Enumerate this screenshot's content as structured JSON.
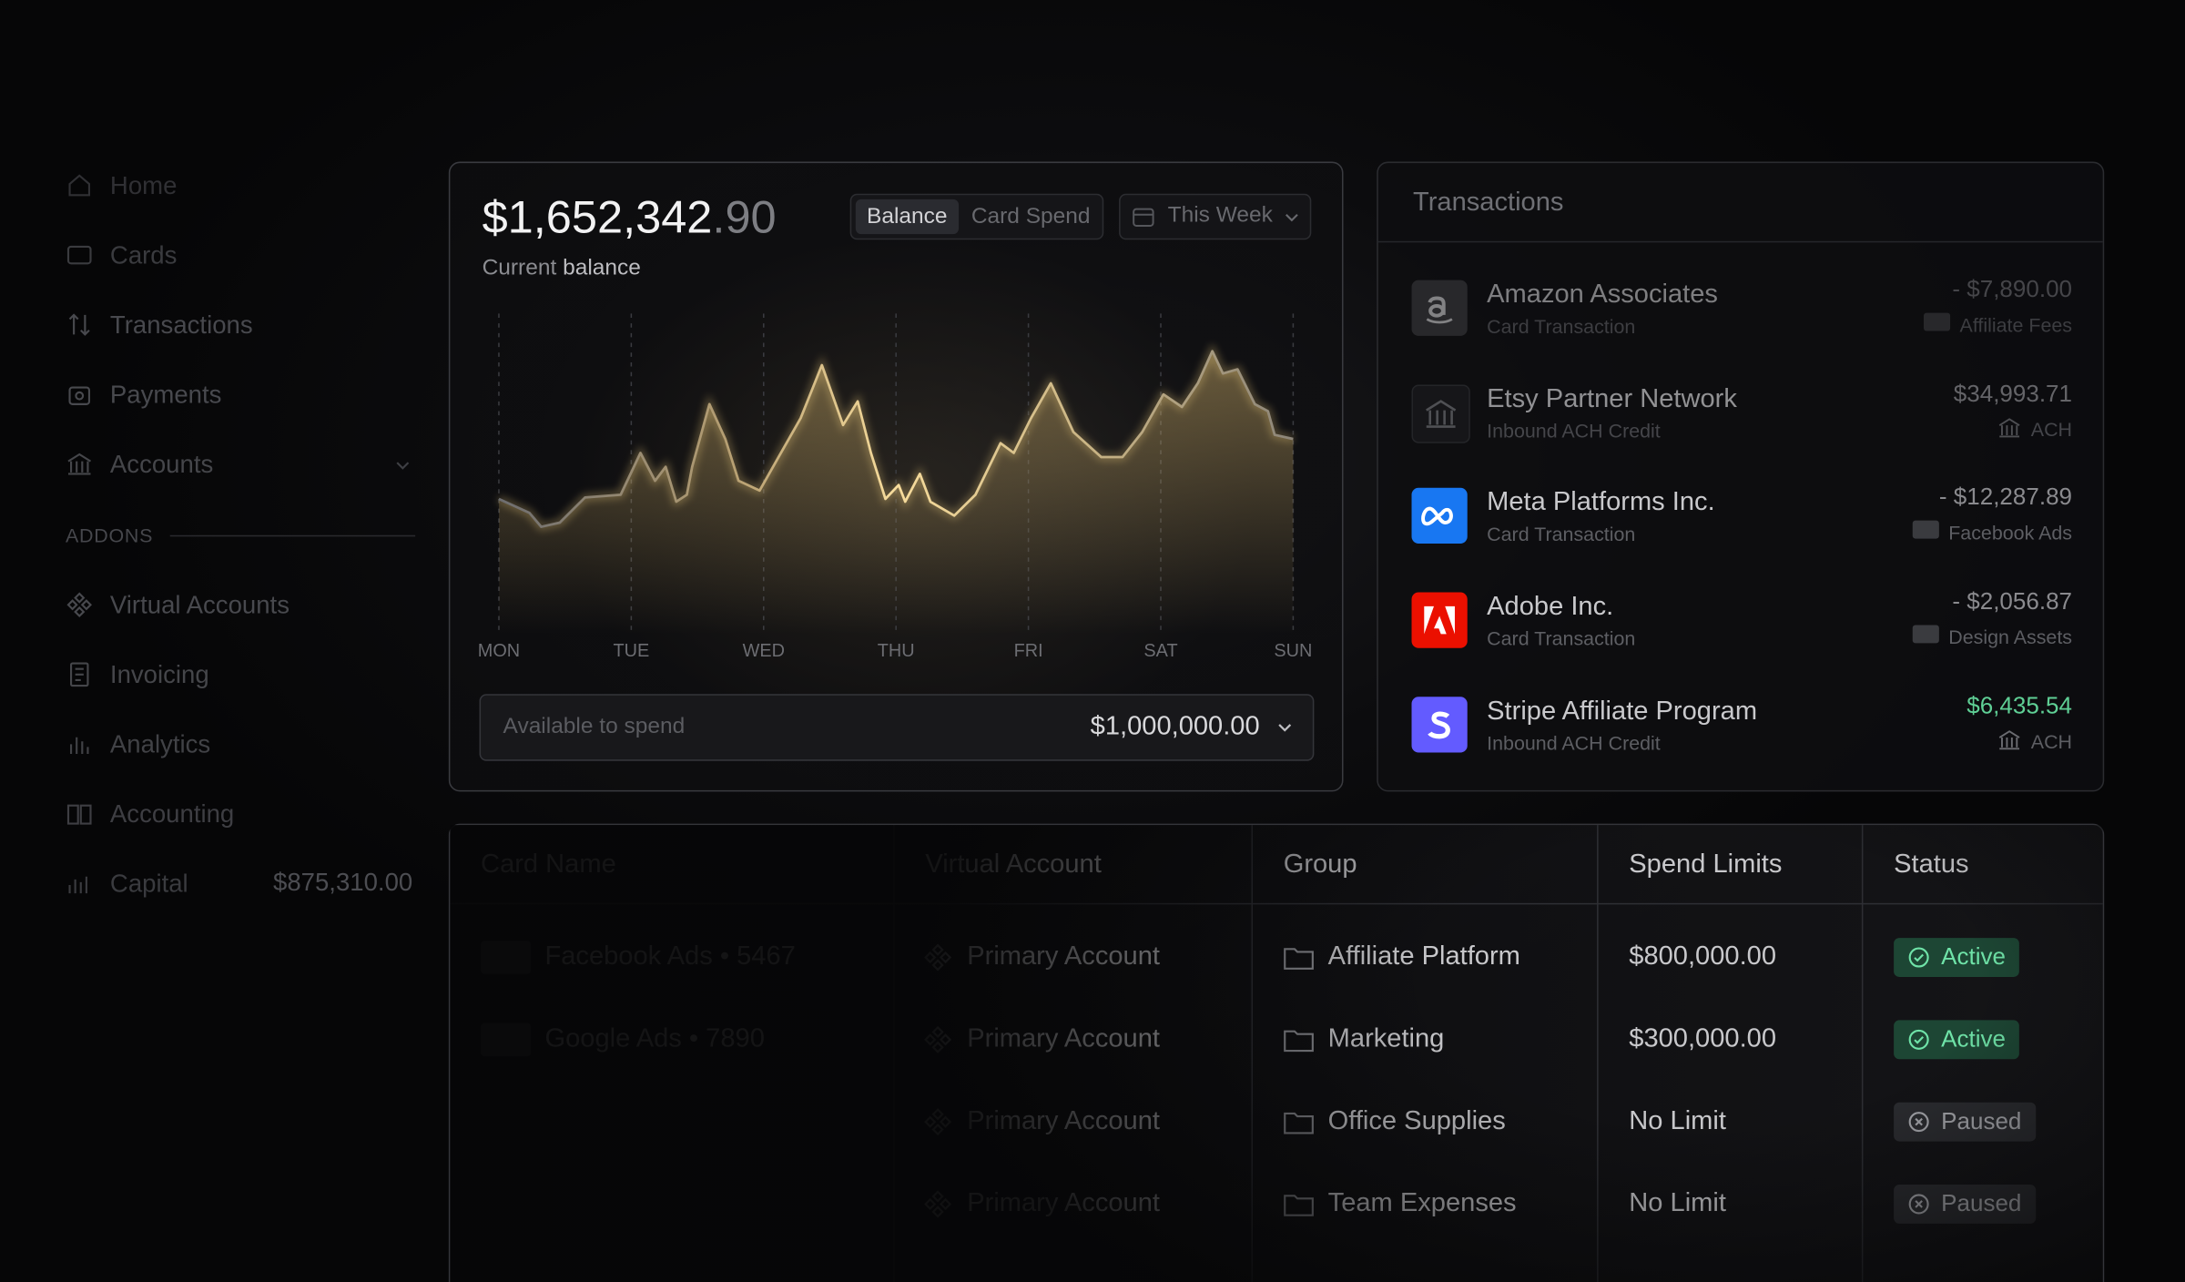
{
  "sidebar": {
    "items": [
      "Home",
      "Cards",
      "Transactions",
      "Payments",
      "Accounts"
    ],
    "addons_label": "ADDONS",
    "addons": [
      "Virtual Accounts",
      "Invoicing",
      "Analytics",
      "Accounting",
      "Capital"
    ],
    "capital_amount": "$875,310.00"
  },
  "balance": {
    "amount_main": "$1,652,342",
    "amount_cents": ".90",
    "caption_a": "Current",
    "caption_b": "balance",
    "tabs": [
      "Balance",
      "Card Spend"
    ],
    "range": "This Week",
    "available_label": "Available to spend",
    "available_amount": "$1,000,000.00"
  },
  "balance_chart": {
    "type": "line",
    "days": [
      "MON",
      "TUE",
      "WED",
      "THU",
      "FRI",
      "SAT",
      "SUN"
    ],
    "x": [
      0,
      0.23,
      0.32,
      0.46,
      0.65,
      0.92,
      1.07,
      1.18,
      1.26,
      1.34,
      1.42,
      1.46,
      1.59,
      1.71,
      1.81,
      1.97,
      2.13,
      2.28,
      2.44,
      2.6,
      2.71,
      2.81,
      2.92,
      3.02,
      3.07,
      3.18,
      3.26,
      3.44,
      3.6,
      3.79,
      3.89,
      4.02,
      4.17,
      4.34,
      4.55,
      4.71,
      4.86,
      5.02,
      5.16,
      5.28,
      5.39,
      5.47,
      5.58,
      5.71,
      5.81,
      5.86,
      6
    ],
    "values": [
      97,
      87,
      77,
      80,
      98,
      100,
      130,
      110,
      120,
      95,
      100,
      120,
      165,
      140,
      110,
      103,
      130,
      155,
      193,
      150,
      167,
      130,
      97,
      107,
      95,
      115,
      95,
      85,
      100,
      137,
      130,
      155,
      180,
      145,
      127,
      127,
      145,
      172,
      163,
      180,
      203,
      187,
      190,
      165,
      160,
      143,
      140
    ],
    "xlim": [
      0,
      6
    ],
    "ylim": [
      0,
      230
    ],
    "color": "#e8c77a"
  },
  "transactions": {
    "title": "Transactions",
    "rows": [
      {
        "name": "Amazon Associates",
        "type": "Card Transaction",
        "amount": "- $7,890.00",
        "category": "Affiliate Fees",
        "color": "#6b6b70"
      },
      {
        "name": "Etsy Partner Network",
        "type": "Inbound ACH Credit",
        "amount": "$34,993.71",
        "category": "ACH",
        "color": "#8a8a8e"
      },
      {
        "name": "Meta Platforms Inc.",
        "type": "Card Transaction",
        "amount": "- $12,287.89",
        "category": "Facebook Ads",
        "color": "#8a8a8e"
      },
      {
        "name": "Adobe Inc.",
        "type": "Card Transaction",
        "amount": "- $2,056.87",
        "category": "Design Assets",
        "color": "#8a8a8e"
      },
      {
        "name": "Stripe Affiliate Program",
        "type": "Inbound ACH Credit",
        "amount": "$6,435.54",
        "category": "ACH",
        "color": "#5fcf95"
      }
    ]
  },
  "table": {
    "headers": [
      "Card Name",
      "Virtual Account",
      "Group",
      "Spend Limits",
      "Status"
    ],
    "rows": [
      {
        "card": "Facebook Ads • 5467",
        "account": "Primary Account",
        "group": "Affiliate Platform",
        "limit": "$800,000.00",
        "status": "Active",
        "status_color": "#6fe3a8"
      },
      {
        "card": "Google Ads • 7890",
        "account": "Primary Account",
        "group": "Marketing",
        "limit": "$300,000.00",
        "status": "Active",
        "status_color": "#6fe3a8"
      },
      {
        "account": "Primary Account",
        "group": "Office Supplies",
        "limit": "No Limit",
        "status": "Paused",
        "status_color": "#a7a8ad"
      },
      {
        "account": "Primary Account",
        "group": "Team Expenses",
        "limit": "No Limit",
        "status": "Paused",
        "status_color": "#a7a8ad"
      }
    ]
  }
}
